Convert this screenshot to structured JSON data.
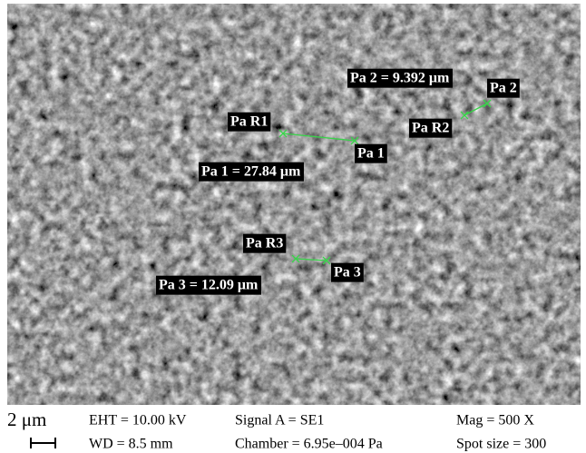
{
  "annotations": [
    {
      "start": "Pa R1",
      "end": "Pa 1",
      "result": "Pa 1 = 27.84 μm"
    },
    {
      "start": "Pa R2",
      "end": "Pa 2",
      "result": "Pa 2 = 9.392 μm"
    },
    {
      "start": "Pa R3",
      "end": "Pa 3",
      "result": "Pa 3 = 12.09 μm"
    }
  ],
  "info_bar": {
    "scale": "2 μm",
    "rows": [
      [
        "EHT = 10.00 kV",
        "Signal A = SE1",
        "Mag = 500 X"
      ],
      [
        "WD = 8.5 mm",
        "Chamber = 6.95e–004 Pa",
        "Spot size = 300"
      ]
    ]
  }
}
